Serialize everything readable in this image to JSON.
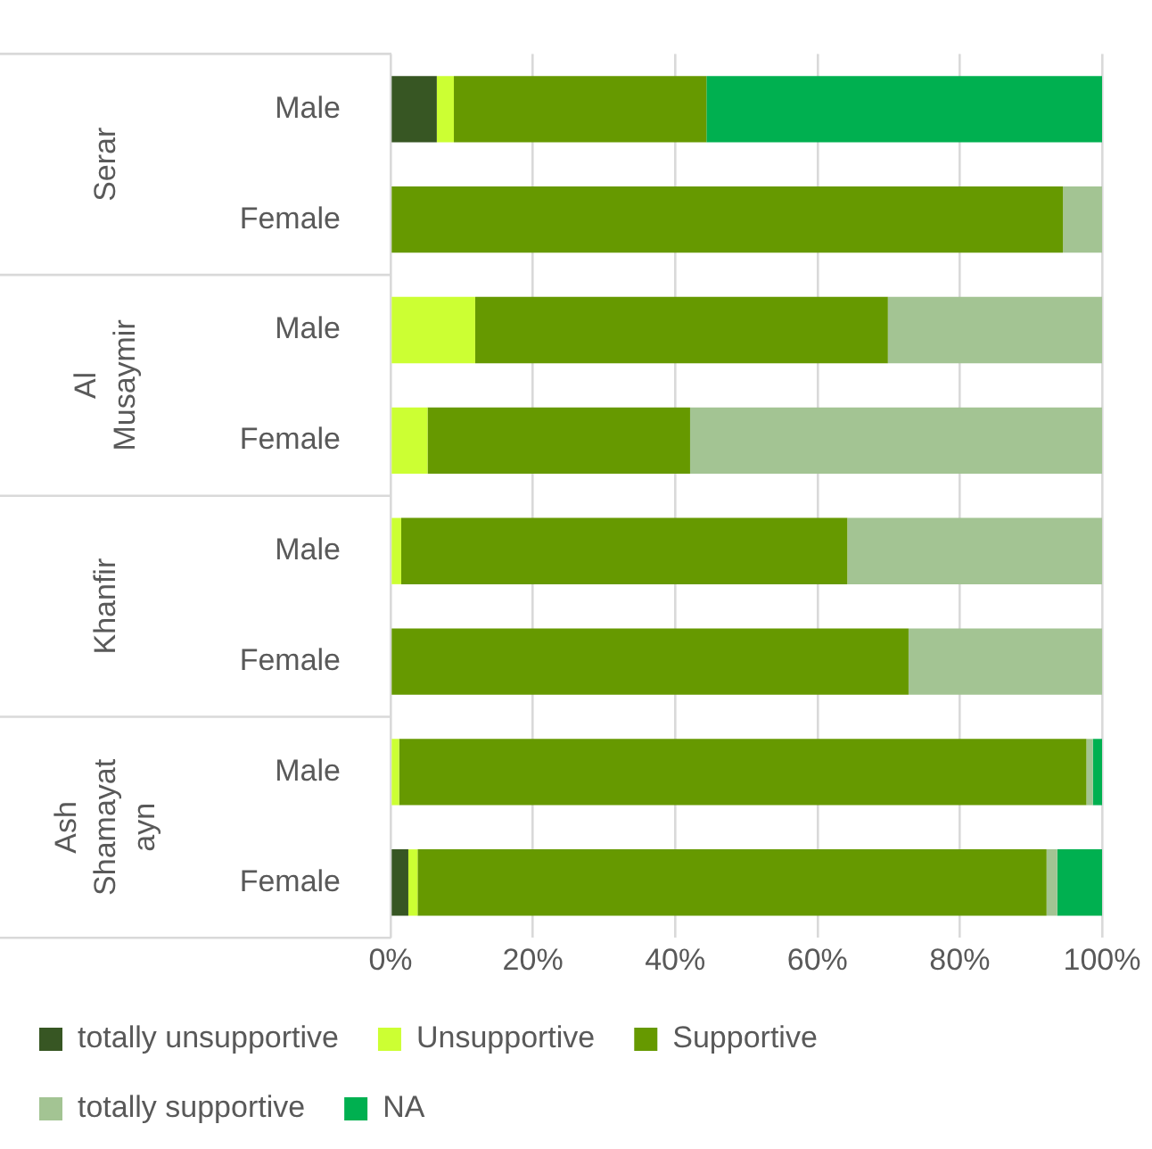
{
  "chart_data": {
    "type": "bar",
    "orientation": "horizontal",
    "stacked": true,
    "categories": [
      "Male",
      "Female",
      "Male",
      "Female",
      "Male",
      "Female",
      "Male",
      "Female"
    ],
    "annotations": [
      "Serar",
      "Al Musaymir",
      "Khanfir",
      "Ash Shamayatayn"
    ],
    "series": [
      {
        "name": "totally unsupportive",
        "color": "#375623",
        "values": [
          6.5,
          0,
          0,
          0,
          0,
          0,
          0,
          2.5
        ]
      },
      {
        "name": "Unsupportive",
        "color": "#ccff33",
        "values": [
          2.4,
          0,
          11.9,
          5.2,
          1.5,
          0,
          1.2,
          1.3
        ]
      },
      {
        "name": "Supportive",
        "color": "#669900",
        "values": [
          35.5,
          94.5,
          58.0,
          36.9,
          62.7,
          72.8,
          96.6,
          88.4
        ]
      },
      {
        "name": "totally supportive",
        "color": "#a3c493",
        "values": [
          0,
          5.5,
          30.1,
          57.9,
          35.8,
          27.2,
          0.9,
          1.5
        ]
      },
      {
        "name": "NA",
        "color": "#00b050",
        "values": [
          55.6,
          0,
          0,
          0,
          0,
          0,
          1.3,
          6.3
        ]
      }
    ],
    "xlim": [
      0,
      100
    ],
    "xticks": [
      {
        "value": 0,
        "label": "0%"
      },
      {
        "value": 20,
        "label": "20%"
      },
      {
        "value": 40,
        "label": "40%"
      },
      {
        "value": 60,
        "label": "60%"
      },
      {
        "value": 80,
        "label": "80%"
      },
      {
        "value": 100,
        "label": "100%"
      }
    ],
    "grid": "x",
    "legend": "bottom"
  }
}
